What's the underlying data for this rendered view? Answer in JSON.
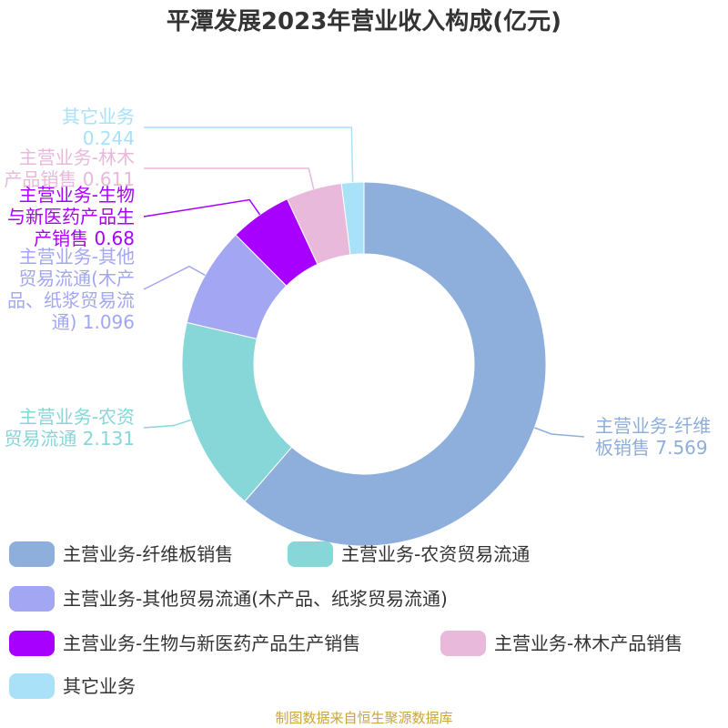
{
  "chart_data": {
    "type": "pie",
    "title": "平潭发展2023年营业收入构成(亿元)",
    "donut": true,
    "legend_position": "bottom",
    "slices": [
      {
        "name": "主营业务-纤维板销售",
        "value": 7.569,
        "color": "#8eaedb",
        "label_lines": [
          "主营业务-纤维",
          "板销售 7.569"
        ]
      },
      {
        "name": "主营业务-农资贸易流通",
        "value": 2.131,
        "color": "#87d6d8",
        "label_lines": [
          "主营业务-农资",
          "贸易流通 2.131"
        ]
      },
      {
        "name": "主营业务-其他贸易流通(木产品、纸浆贸易流通)",
        "value": 1.096,
        "color": "#a3a6f2",
        "label_lines": [
          "主营业务-其他",
          "贸易流通(木产",
          "品、纸浆贸易流",
          "通) 1.096"
        ]
      },
      {
        "name": "主营业务-生物与新医药产品生产销售",
        "value": 0.68,
        "color": "#a800ff",
        "label_lines": [
          "主营业务-生物",
          "与新医药产品生",
          "产销售 0.68"
        ]
      },
      {
        "name": "主营业务-林木产品销售",
        "value": 0.611,
        "color": "#e8b9da",
        "label_lines": [
          "主营业务-林木",
          "产品销售 0.611"
        ]
      },
      {
        "name": "其它业务",
        "value": 0.244,
        "color": "#a8e1f8",
        "label_lines": [
          "其它业务",
          "0.244"
        ]
      }
    ]
  },
  "source": "制图数据来自恒生聚源数据库"
}
